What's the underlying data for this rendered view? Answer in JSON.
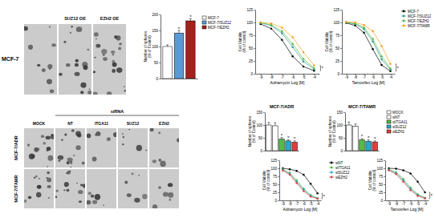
{
  "image_panels": {
    "top": {
      "row_label": "MCF-7",
      "column_labels": [
        null,
        "SUZ12 OE",
        "EZH2 OE"
      ]
    },
    "bottom": {
      "group_label": "siRNA",
      "column_labels": [
        "MOCK",
        "NT",
        "ITGA11",
        "SUZ12",
        "EZH2"
      ],
      "row_labels": [
        "MCF-7/ADR",
        "MCF-7/TAMR"
      ]
    }
  },
  "chart_data": [
    {
      "type": "bar",
      "ylabel": [
        "Number of spheres",
        "(% of Control)"
      ],
      "categories": [
        "MCF-7",
        "MCF-7/SUZ12",
        "MCF-7/EZH2"
      ],
      "values": [
        100,
        142,
        180
      ],
      "errors": [
        5,
        8,
        7
      ],
      "significance": [
        null,
        "*",
        "*"
      ],
      "colors": [
        "#ffffff",
        "#5b9bd5",
        "#a3201c"
      ],
      "ylim": [
        0,
        200
      ],
      "yticks": [
        0,
        50,
        100,
        150,
        200
      ],
      "tick_labels": "y",
      "legend": "upper right"
    },
    {
      "type": "line",
      "ylabel": [
        "Cell Viability",
        "(% of control)"
      ],
      "xlabel": "Adriamycin Log [M]",
      "x": [
        -9,
        -8,
        -7,
        -6,
        -5,
        -4
      ],
      "series": [
        {
          "color": "#000000",
          "values": [
            97,
            88,
            66,
            34,
            14,
            6
          ]
        },
        {
          "color": "#2a9d8f",
          "values": [
            99,
            94,
            79,
            52,
            24,
            9
          ]
        },
        {
          "color": "#57b947",
          "values": [
            100,
            95,
            83,
            58,
            29,
            11
          ]
        },
        {
          "color": "#f4a020",
          "values": [
            100,
            98,
            90,
            71,
            42,
            16
          ]
        }
      ],
      "xlim": [
        -9.5,
        -3.5
      ],
      "xticks": [
        -9,
        -8,
        -7,
        -6,
        -5,
        -4
      ],
      "ylim": [
        0,
        125
      ],
      "yticks": [
        0,
        25,
        50,
        75,
        100,
        125
      ],
      "marker": "circle",
      "significance": "*"
    },
    {
      "type": "line",
      "ylabel": [
        "Cell Viability",
        "(% of control)"
      ],
      "xlabel": "Tamoxifen Log [M]",
      "x": [
        -9,
        -8,
        -7,
        -6,
        -5,
        -4
      ],
      "series": [
        {
          "name": "MCF-7",
          "color": "#000000",
          "values": [
            99,
            94,
            80,
            48,
            17,
            5
          ]
        },
        {
          "name": "MCF-7/SUZ12",
          "color": "#2a9d8f",
          "values": [
            100,
            97,
            87,
            63,
            28,
            8
          ]
        },
        {
          "name": "MCF-7/EZH2",
          "color": "#57b947",
          "values": [
            100,
            98,
            90,
            68,
            34,
            10
          ]
        },
        {
          "name": "MCF-7/TAMR",
          "color": "#f4a020",
          "values": [
            101,
            100,
            95,
            83,
            54,
            19
          ]
        }
      ],
      "xlim": [
        -9.5,
        -3.5
      ],
      "xticks": [
        -9,
        -8,
        -7,
        -6,
        -5,
        -4
      ],
      "ylim": [
        0,
        125
      ],
      "yticks": [
        0,
        25,
        50,
        75,
        100,
        125
      ],
      "marker": "circle",
      "significance": "*",
      "legend": "upper right"
    },
    {
      "type": "bar",
      "title": "MCF-7/ADR",
      "ylabel": [
        "Number of spheres",
        "(% of Control)"
      ],
      "categories": [
        null,
        null,
        null,
        null,
        null
      ],
      "values": [
        100,
        97,
        45,
        38,
        33
      ],
      "errors": [
        10,
        12,
        6,
        5,
        5
      ],
      "significance": [
        null,
        null,
        "*",
        "*",
        "*"
      ],
      "colors": [
        "#ffffff",
        "#ffffff",
        "#57b947",
        "#29a8c9",
        "#e0403a"
      ],
      "ylim": [
        0,
        150
      ],
      "yticks": [
        0,
        50,
        100,
        150
      ],
      "tick_labels": "y"
    },
    {
      "type": "bar",
      "title": "MCF-7/TAMR",
      "ylabel": [
        "Number of spheres",
        "(% of Control)"
      ],
      "categories": [
        "MOCK",
        "siNT",
        "siITGA11",
        "siSUZ12",
        "siEZH2"
      ],
      "values": [
        100,
        95,
        42,
        37,
        34
      ],
      "errors": [
        12,
        9,
        5,
        6,
        4
      ],
      "significance": [
        null,
        null,
        "*",
        "*",
        "*"
      ],
      "colors": [
        "#ffffff",
        "#ffffff",
        "#57b947",
        "#29a8c9",
        "#e0403a"
      ],
      "ylim": [
        0,
        150
      ],
      "yticks": [
        0,
        50,
        100,
        150
      ],
      "tick_labels": "y",
      "legend": "upper right"
    },
    {
      "type": "line",
      "ylabel": [
        "Cell Viability",
        "(% of control)"
      ],
      "xlabel": "Adriamycin Log [M]",
      "x": [
        -9,
        -8,
        -7,
        -6,
        -5,
        -4
      ],
      "series": [
        {
          "color": "#000000",
          "values": [
            100,
            97,
            92,
            80,
            52,
            22
          ]
        },
        {
          "color": "#57b947",
          "values": [
            97,
            86,
            63,
            37,
            17,
            7
          ]
        },
        {
          "color": "#29a8c9",
          "values": [
            95,
            83,
            58,
            33,
            15,
            6
          ]
        },
        {
          "color": "#e0403a",
          "values": [
            93,
            80,
            54,
            29,
            12,
            5
          ]
        }
      ],
      "xlim": [
        -9.5,
        -3.5
      ],
      "xticks": [
        -9,
        -8,
        -7,
        -6,
        -5,
        -4
      ],
      "ylim": [
        0,
        125
      ],
      "yticks": [
        0,
        25,
        50,
        75,
        100,
        125
      ],
      "marker": "circle",
      "significance": "*"
    },
    {
      "type": "line",
      "ylabel": [
        "Cell Viability",
        "(% of control)"
      ],
      "xlabel": "Tamoxifen Log [M]",
      "x": [
        -9,
        -8,
        -7,
        -6,
        -5,
        -4
      ],
      "series": [
        {
          "name": "siNT",
          "color": "#000000",
          "values": [
            100,
            99,
            94,
            84,
            58,
            25
          ]
        },
        {
          "name": "siITGA11",
          "color": "#57b947",
          "values": [
            96,
            88,
            67,
            40,
            19,
            8
          ]
        },
        {
          "name": "siSUZ12",
          "color": "#29a8c9",
          "values": [
            95,
            85,
            62,
            36,
            16,
            7
          ]
        },
        {
          "name": "siEZH2",
          "color": "#e0403a",
          "values": [
            94,
            82,
            58,
            32,
            14,
            6
          ]
        }
      ],
      "xlim": [
        -9.5,
        -3.5
      ],
      "xticks": [
        -9,
        -8,
        -7,
        -6,
        -5,
        -4
      ],
      "ylim": [
        0,
        125
      ],
      "yticks": [
        0,
        25,
        50,
        75,
        100,
        125
      ],
      "marker": "circle",
      "significance": "*",
      "legend": "upper left"
    }
  ]
}
